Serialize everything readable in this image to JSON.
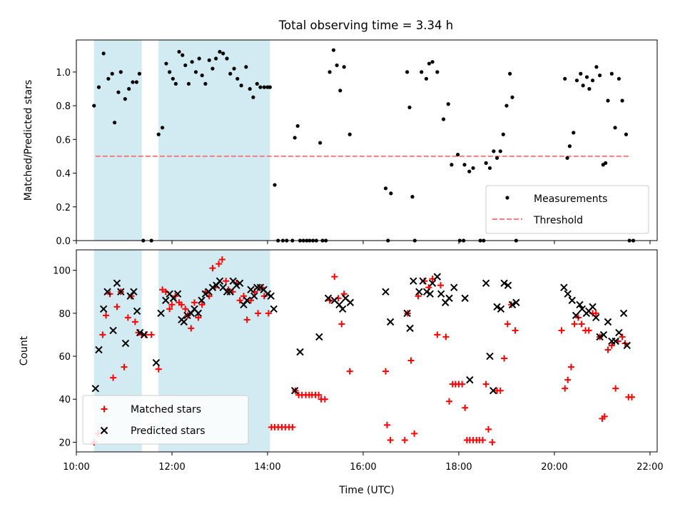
{
  "title": "Total observing time = 3.34 h",
  "colors": {
    "shade": "#add8e6",
    "measure": "#000000",
    "threshold": "#f08080",
    "matched": "#ff0000",
    "predicted": "#000000"
  },
  "chart_data": [
    {
      "type": "scatter",
      "panel": "top",
      "ylabel": "Matched/Predicted stars",
      "xlabel": "",
      "xlim": [
        10.0,
        22.15
      ],
      "ylim": [
        0.0,
        1.19
      ],
      "yticks": [
        0.0,
        0.2,
        0.4,
        0.6,
        0.8,
        1.0
      ],
      "ytick_labels": [
        "0.0",
        "0.2",
        "0.4",
        "0.6",
        "0.8",
        "1.0"
      ],
      "shaded_intervals": [
        [
          10.37,
          11.37
        ],
        [
          11.72,
          14.05
        ]
      ],
      "threshold": {
        "value": 0.5,
        "x_range": [
          10.4,
          21.6
        ]
      },
      "legend": {
        "position": "lower right",
        "entries": [
          "Measurements",
          "Threshold"
        ]
      },
      "series": [
        {
          "name": "Measurements",
          "x": [
            10.37,
            10.47,
            10.57,
            10.67,
            10.75,
            10.8,
            10.88,
            10.93,
            11.02,
            11.1,
            11.18,
            11.26,
            11.32,
            11.4,
            11.57,
            11.72,
            11.8,
            11.88,
            11.95,
            12.02,
            12.08,
            12.15,
            12.22,
            12.28,
            12.35,
            12.42,
            12.5,
            12.57,
            12.63,
            12.7,
            12.78,
            12.85,
            12.92,
            13.0,
            13.07,
            13.15,
            13.22,
            13.3,
            13.37,
            13.45,
            13.55,
            13.63,
            13.7,
            13.78,
            13.85,
            13.93,
            14.0,
            14.05,
            14.15,
            14.22,
            14.32,
            14.4,
            14.52,
            14.57,
            14.63,
            14.68,
            14.75,
            14.82,
            14.88,
            14.95,
            15.02,
            15.1,
            15.15,
            15.22,
            15.3,
            15.38,
            15.45,
            15.52,
            15.6,
            15.72,
            16.47,
            16.52,
            16.58,
            16.92,
            16.97,
            17.03,
            17.08,
            17.22,
            17.32,
            17.38,
            17.45,
            17.55,
            17.68,
            17.78,
            17.85,
            17.98,
            18.02,
            18.1,
            18.12,
            18.22,
            18.3,
            18.45,
            18.52,
            18.57,
            18.65,
            18.73,
            18.8,
            18.87,
            18.93,
            19.0,
            19.07,
            19.12,
            19.2,
            20.22,
            20.27,
            20.32,
            20.4,
            20.47,
            20.55,
            20.6,
            20.68,
            20.73,
            20.8,
            20.88,
            20.95,
            21.02,
            21.07,
            21.12,
            21.2,
            21.27,
            21.35,
            21.42,
            21.5,
            21.57,
            21.65
          ],
          "y": [
            0.8,
            0.91,
            1.11,
            0.96,
            0.99,
            0.7,
            0.88,
            1.0,
            0.84,
            0.9,
            0.94,
            0.94,
            0.99,
            0.0,
            0.0,
            0.63,
            0.67,
            1.05,
            1.0,
            0.96,
            0.93,
            1.12,
            1.1,
            1.04,
            0.93,
            1.06,
            1.0,
            1.08,
            0.98,
            0.93,
            1.07,
            1.02,
            1.08,
            1.12,
            1.11,
            1.08,
            0.99,
            1.02,
            0.96,
            0.92,
            1.03,
            0.9,
            0.85,
            0.93,
            0.91,
            0.91,
            0.91,
            0.91,
            0.33,
            0.0,
            0.0,
            0.0,
            0.0,
            0.61,
            0.68,
            0.0,
            0.0,
            0.0,
            0.0,
            0.0,
            0.0,
            0.58,
            0.0,
            0.0,
            1.0,
            1.13,
            1.04,
            0.89,
            1.03,
            0.63,
            0.31,
            0.0,
            0.28,
            1.0,
            0.79,
            0.26,
            0.0,
            1.0,
            0.96,
            1.05,
            1.06,
            1.0,
            0.72,
            0.81,
            0.45,
            0.51,
            0.0,
            0.0,
            0.45,
            0.41,
            0.43,
            0.0,
            0.0,
            0.46,
            0.43,
            0.53,
            0.49,
            0.53,
            0.63,
            0.8,
            0.99,
            0.85,
            0.0,
            0.96,
            0.49,
            0.56,
            0.64,
            0.95,
            0.99,
            0.92,
            0.97,
            0.9,
            0.95,
            1.03,
            0.98,
            0.45,
            0.46,
            0.83,
            0.99,
            0.67,
            0.96,
            0.83,
            0.63,
            0.0,
            0.0
          ]
        },
        {
          "name": "Threshold",
          "x": [
            10.4,
            21.6
          ],
          "y": [
            0.5,
            0.5
          ]
        }
      ]
    },
    {
      "type": "scatter",
      "panel": "bottom",
      "ylabel": "Count",
      "xlabel": "Time (UTC)",
      "xlim": [
        10.0,
        22.15
      ],
      "ylim": [
        15.5,
        109.5
      ],
      "yticks": [
        20,
        40,
        60,
        80,
        100
      ],
      "ytick_labels": [
        "20",
        "40",
        "60",
        "80",
        "100"
      ],
      "xticks": [
        10,
        12,
        14,
        16,
        18,
        20,
        22
      ],
      "xtick_labels": [
        "10:00",
        "12:00",
        "14:00",
        "16:00",
        "18:00",
        "20:00",
        "22:00"
      ],
      "shaded_intervals": [
        [
          10.37,
          11.37
        ],
        [
          11.72,
          14.05
        ]
      ],
      "legend": {
        "position": "lower left",
        "entries": [
          "Matched stars",
          "Predicted stars"
        ]
      },
      "series": [
        {
          "name": "Matched stars",
          "x": [
            10.37,
            10.45,
            10.55,
            10.62,
            10.7,
            10.77,
            10.85,
            10.93,
            11.0,
            11.08,
            11.15,
            11.23,
            11.3,
            11.37,
            11.45,
            11.57,
            11.65,
            11.72,
            11.8,
            11.87,
            11.95,
            12.0,
            12.07,
            12.15,
            12.2,
            12.28,
            12.33,
            12.4,
            12.47,
            12.55,
            12.63,
            12.7,
            12.78,
            12.85,
            12.9,
            12.98,
            13.05,
            13.13,
            13.18,
            13.27,
            13.35,
            13.42,
            13.5,
            13.57,
            13.65,
            13.73,
            13.8,
            13.87,
            13.93,
            14.02,
            14.08,
            14.15,
            14.22,
            14.3,
            14.37,
            14.45,
            14.52,
            14.58,
            14.65,
            14.72,
            14.8,
            14.87,
            14.93,
            15.0,
            15.07,
            15.12,
            15.2,
            15.3,
            15.4,
            15.48,
            15.55,
            15.6,
            15.72,
            16.47,
            16.5,
            16.57,
            16.87,
            16.93,
            17.0,
            17.07,
            17.15,
            17.28,
            17.37,
            17.45,
            17.55,
            17.62,
            17.73,
            17.8,
            17.87,
            17.93,
            18.0,
            18.07,
            18.13,
            18.17,
            18.23,
            18.3,
            18.37,
            18.43,
            18.5,
            18.57,
            18.62,
            18.7,
            18.8,
            18.87,
            18.95,
            19.02,
            19.1,
            19.18,
            20.15,
            20.22,
            20.28,
            20.35,
            20.42,
            20.5,
            20.57,
            20.65,
            20.72,
            20.8,
            20.87,
            20.95,
            21.0,
            21.05,
            21.12,
            21.2,
            21.28,
            21.33,
            21.42,
            21.48,
            21.55,
            21.62
          ],
          "y": [
            20,
            24,
            70,
            79,
            89,
            50,
            83,
            90,
            55,
            78,
            88,
            76,
            71,
            70,
            70,
            70,
            36,
            54,
            91,
            90,
            82,
            84,
            88,
            85,
            84,
            82,
            79,
            73,
            85,
            78,
            84,
            90,
            88,
            101,
            92,
            103,
            105,
            95,
            91,
            90,
            94,
            86,
            88,
            77,
            86,
            90,
            80,
            92,
            88,
            80,
            27,
            27,
            27,
            27,
            27,
            27,
            27,
            44,
            42,
            42,
            42,
            42,
            42,
            42,
            42,
            40,
            40,
            86,
            97,
            87,
            75,
            89,
            53,
            53,
            28,
            21,
            21,
            80,
            58,
            24,
            88,
            95,
            92,
            96,
            70,
            93,
            69,
            39,
            47,
            47,
            47,
            47,
            36,
            21,
            21,
            21,
            21,
            21,
            21,
            47,
            26,
            20,
            44,
            44,
            59,
            75,
            84,
            72,
            72,
            45,
            49,
            55,
            75,
            78,
            75,
            72,
            72,
            80,
            80,
            69,
            31,
            32,
            63,
            65,
            45,
            67,
            69,
            66,
            41,
            41
          ]
        },
        {
          "name": "Predicted stars",
          "x": [
            10.4,
            10.47,
            10.57,
            10.65,
            10.77,
            10.85,
            10.93,
            11.03,
            11.13,
            11.2,
            11.27,
            11.33,
            11.42,
            11.67,
            11.77,
            11.87,
            11.95,
            12.03,
            12.12,
            12.2,
            12.25,
            12.32,
            12.4,
            12.47,
            12.55,
            12.62,
            12.7,
            12.77,
            12.85,
            12.93,
            13.0,
            13.07,
            13.15,
            13.22,
            13.28,
            13.35,
            13.42,
            13.5,
            13.57,
            13.65,
            13.72,
            13.78,
            13.85,
            13.92,
            14.0,
            14.07,
            14.13,
            14.57,
            14.68,
            15.08,
            15.27,
            15.4,
            15.5,
            15.57,
            15.63,
            15.73,
            16.47,
            16.57,
            16.92,
            16.98,
            17.05,
            17.17,
            17.25,
            17.33,
            17.4,
            17.45,
            17.55,
            17.63,
            17.72,
            17.8,
            17.9,
            18.13,
            18.23,
            18.57,
            18.65,
            18.72,
            18.8,
            18.88,
            18.95,
            19.03,
            19.12,
            19.2,
            20.2,
            20.28,
            20.37,
            20.45,
            20.53,
            20.58,
            20.67,
            20.72,
            20.8,
            20.87,
            20.95,
            21.03,
            21.12,
            21.2,
            21.28,
            21.35,
            21.45,
            21.52
          ],
          "y": [
            45,
            63,
            82,
            90,
            72,
            94,
            90,
            66,
            88,
            90,
            81,
            71,
            70,
            57,
            80,
            86,
            89,
            87,
            89,
            77,
            76,
            79,
            80,
            82,
            80,
            86,
            89,
            90,
            92,
            93,
            95,
            92,
            90,
            90,
            95,
            93,
            94,
            84,
            86,
            91,
            88,
            92,
            92,
            91,
            89,
            88,
            82,
            44,
            62,
            69,
            87,
            86,
            84,
            82,
            87,
            85,
            90,
            76,
            80,
            73,
            95,
            90,
            95,
            90,
            89,
            94,
            97,
            89,
            85,
            87,
            92,
            87,
            49,
            94,
            60,
            44,
            83,
            82,
            94,
            93,
            84,
            85,
            92,
            89,
            86,
            79,
            84,
            82,
            80,
            81,
            83,
            78,
            69,
            70,
            76,
            67,
            67,
            71,
            80,
            65
          ]
        }
      ]
    }
  ]
}
